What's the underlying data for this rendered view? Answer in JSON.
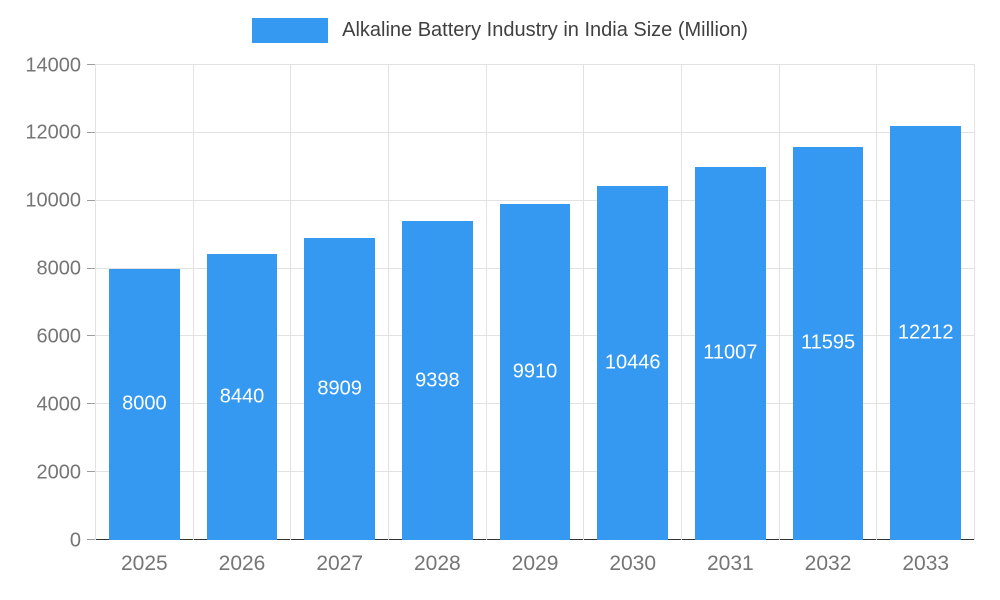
{
  "legend": {
    "swatch_color": "#3599f2"
  },
  "chart_data": {
    "type": "bar",
    "title": "Alkaline Battery Industry in India Size (Million)",
    "categories": [
      "2025",
      "2026",
      "2027",
      "2028",
      "2029",
      "2030",
      "2031",
      "2032",
      "2033"
    ],
    "values": [
      8000,
      8440,
      8909,
      9398,
      9910,
      10446,
      11007,
      11595,
      12212
    ],
    "xlabel": "",
    "ylabel": "",
    "ylim": [
      0,
      14000
    ],
    "yticks": [
      0,
      2000,
      4000,
      6000,
      8000,
      10000,
      12000,
      14000
    ],
    "bar_color": "#3599f2",
    "data_label_color": "#ffffff",
    "grid": true,
    "legend_position": "top",
    "axis_text_color": "#757575",
    "gridline_color": "#e2e2e2",
    "baseline_color": "#333333"
  }
}
